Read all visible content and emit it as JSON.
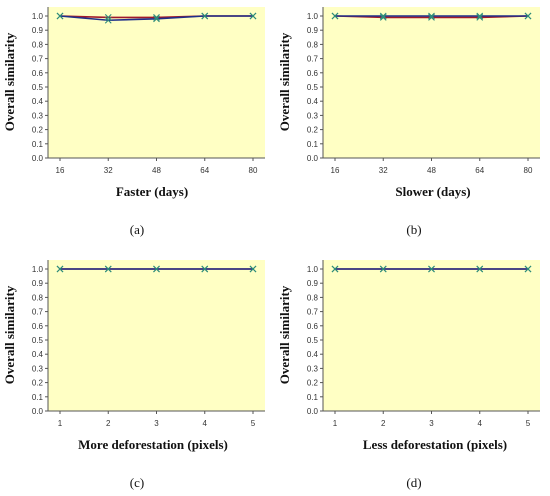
{
  "colors": {
    "plot_background": "#FFFFC4",
    "axis": "#555555",
    "series_red": "#A0192B",
    "series_blue": "#1F2F8A",
    "marker_green": "#2E8B7A"
  },
  "chart_data": [
    {
      "type": "line",
      "panel": "(a)",
      "xlabel": "Faster (days)",
      "ylabel": "Overall similarity",
      "x": [
        16,
        32,
        48,
        64,
        80
      ],
      "xlim": [
        16,
        80
      ],
      "ylim": [
        0,
        1.0
      ],
      "yticks": [
        0.0,
        0.1,
        0.2,
        0.3,
        0.4,
        0.5,
        0.6,
        0.7,
        0.8,
        0.9,
        1.0
      ],
      "ytick_labels": [
        "0.0",
        "0.1",
        "0.2",
        "0.3",
        "0.4",
        "0.5",
        "0.6",
        "0.7",
        "0.8",
        "0.9",
        "1.0"
      ],
      "xtick_labels": [
        "16",
        "32",
        "48",
        "64",
        "80"
      ],
      "grid": false,
      "series": [
        {
          "color": "#A0192B",
          "values": [
            1.0,
            0.99,
            0.99,
            1.0,
            1.0
          ]
        },
        {
          "color": "#1F2F8A",
          "values": [
            1.0,
            0.97,
            0.98,
            1.0,
            1.0
          ]
        }
      ]
    },
    {
      "type": "line",
      "panel": "(b)",
      "xlabel": "Slower (days)",
      "ylabel": "Overall similarity",
      "x": [
        16,
        32,
        48,
        64,
        80
      ],
      "xlim": [
        16,
        80
      ],
      "ylim": [
        0,
        1.0
      ],
      "yticks": [
        0.0,
        0.1,
        0.2,
        0.3,
        0.4,
        0.5,
        0.6,
        0.7,
        0.8,
        0.9,
        1.0
      ],
      "ytick_labels": [
        "0.0",
        "0.1",
        "0.2",
        "0.3",
        "0.4",
        "0.5",
        "0.6",
        "0.7",
        "0.8",
        "0.9",
        "1.0"
      ],
      "xtick_labels": [
        "16",
        "32",
        "48",
        "64",
        "80"
      ],
      "grid": false,
      "series": [
        {
          "color": "#A0192B",
          "values": [
            1.0,
            0.99,
            0.99,
            0.99,
            1.0
          ]
        },
        {
          "color": "#1F2F8A",
          "values": [
            1.0,
            1.0,
            1.0,
            1.0,
            1.0
          ]
        }
      ]
    },
    {
      "type": "line",
      "panel": "(c)",
      "xlabel": "More deforestation (pixels)",
      "ylabel": "Overall similarity",
      "x": [
        1,
        2,
        3,
        4,
        5
      ],
      "xlim": [
        1,
        5
      ],
      "ylim": [
        0,
        1.0
      ],
      "yticks": [
        0.0,
        0.1,
        0.2,
        0.3,
        0.4,
        0.5,
        0.6,
        0.7,
        0.8,
        0.9,
        1.0
      ],
      "ytick_labels": [
        "0.0",
        "0.1",
        "0.2",
        "0.3",
        "0.4",
        "0.5",
        "0.6",
        "0.7",
        "0.8",
        "0.9",
        "1.0"
      ],
      "xtick_labels": [
        "1",
        "2",
        "3",
        "4",
        "5"
      ],
      "grid": false,
      "series": [
        {
          "color": "#A0192B",
          "values": [
            1.0,
            1.0,
            1.0,
            1.0,
            1.0
          ]
        },
        {
          "color": "#1F2F8A",
          "values": [
            1.0,
            1.0,
            1.0,
            1.0,
            1.0
          ]
        }
      ]
    },
    {
      "type": "line",
      "panel": "(d)",
      "xlabel": "Less deforestation (pixels)",
      "ylabel": "Overall similarity",
      "x": [
        1,
        2,
        3,
        4,
        5
      ],
      "xlim": [
        1,
        5
      ],
      "ylim": [
        0,
        1.0
      ],
      "yticks": [
        0.0,
        0.1,
        0.2,
        0.3,
        0.4,
        0.5,
        0.6,
        0.7,
        0.8,
        0.9,
        1.0
      ],
      "ytick_labels": [
        "0.0",
        "0.1",
        "0.2",
        "0.3",
        "0.4",
        "0.5",
        "0.6",
        "0.7",
        "0.8",
        "0.9",
        "1.0"
      ],
      "xtick_labels": [
        "1",
        "2",
        "3",
        "4",
        "5"
      ],
      "grid": false,
      "series": [
        {
          "color": "#A0192B",
          "values": [
            1.0,
            1.0,
            1.0,
            1.0,
            1.0
          ]
        },
        {
          "color": "#1F2F8A",
          "values": [
            1.0,
            1.0,
            1.0,
            1.0,
            1.0
          ]
        }
      ]
    }
  ]
}
